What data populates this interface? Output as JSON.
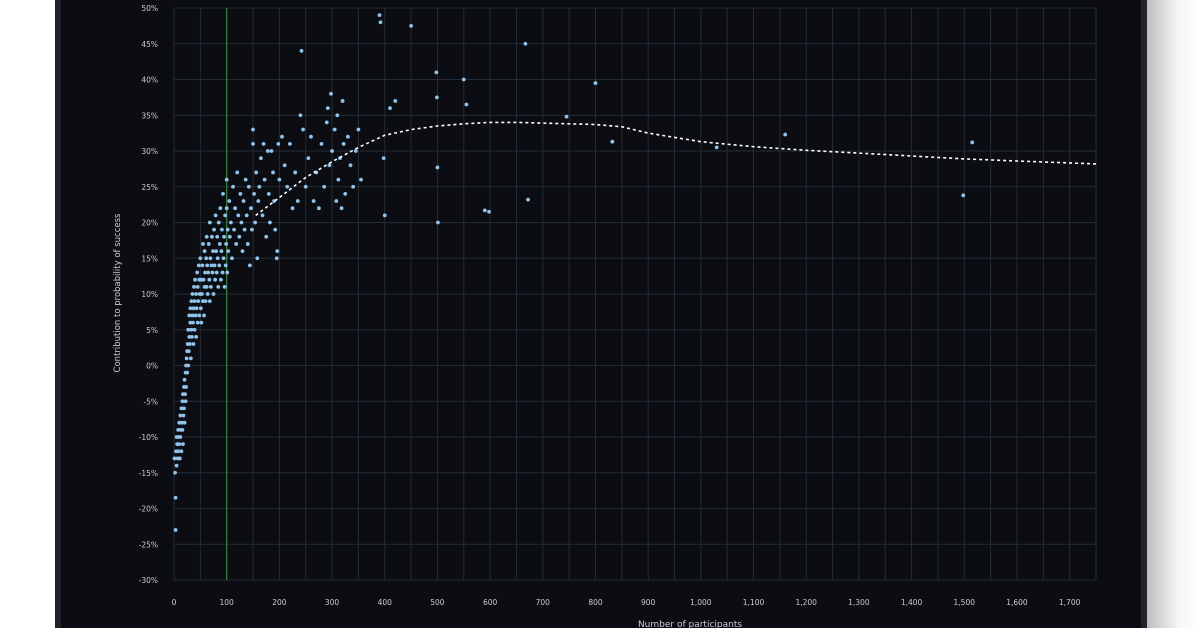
{
  "chart_data": {
    "type": "scatter",
    "xlabel": "Number of participants",
    "ylabel": "Contribution to probability of success",
    "xlim": [
      0,
      1750
    ],
    "ylim": [
      -30,
      50
    ],
    "x_ticks": [
      0,
      100,
      200,
      300,
      400,
      500,
      600,
      700,
      800,
      900,
      1000,
      1100,
      1200,
      1300,
      1400,
      1500,
      1600,
      1700
    ],
    "x_tick_labels": [
      "0",
      "100",
      "200",
      "300",
      "400",
      "500",
      "600",
      "700",
      "800",
      "900",
      "1,000",
      "1,100",
      "1,200",
      "1,300",
      "1,400",
      "1,500",
      "1,600",
      "1,700"
    ],
    "y_ticks": [
      -30,
      -25,
      -20,
      -15,
      -10,
      -5,
      0,
      5,
      10,
      15,
      20,
      25,
      30,
      35,
      40,
      45,
      50
    ],
    "y_tick_labels": [
      "-30%",
      "-25%",
      "-20%",
      "-15%",
      "-10%",
      "-5%",
      "0%",
      "5%",
      "10%",
      "15%",
      "20%",
      "25%",
      "30%",
      "35%",
      "40%",
      "45%",
      "50%"
    ],
    "grid": true,
    "reference_line_x": 100,
    "colors": {
      "points": "#8fc3ec",
      "trend": "#ffffff",
      "reference": "#2f7d3a",
      "grid": "#262b36",
      "text": "#c9ccd2",
      "background": "#0b0d12"
    },
    "trend": {
      "x": [
        155,
        200,
        250,
        300,
        350,
        400,
        450,
        500,
        550,
        600,
        650,
        700,
        750,
        800,
        850,
        900,
        1000,
        1100,
        1200,
        1300,
        1400,
        1500,
        1600,
        1750
      ],
      "y": [
        21,
        23.5,
        26.3,
        28.5,
        30.5,
        32.2,
        33,
        33.5,
        33.8,
        34,
        34,
        33.9,
        33.8,
        33.7,
        33.4,
        32.5,
        31.3,
        30.6,
        30.1,
        29.7,
        29.3,
        28.9,
        28.6,
        28.2
      ]
    },
    "points": [
      [
        1,
        -13
      ],
      [
        2,
        -15
      ],
      [
        3,
        -18.5
      ],
      [
        3,
        -23
      ],
      [
        4,
        -12
      ],
      [
        5,
        -10
      ],
      [
        5,
        -14
      ],
      [
        6,
        -11
      ],
      [
        7,
        -13
      ],
      [
        8,
        -9
      ],
      [
        8,
        -12
      ],
      [
        9,
        -10
      ],
      [
        10,
        -8
      ],
      [
        10,
        -11
      ],
      [
        11,
        -13
      ],
      [
        12,
        -7
      ],
      [
        12,
        -10
      ],
      [
        13,
        -9
      ],
      [
        14,
        -6
      ],
      [
        14,
        -12
      ],
      [
        15,
        -8
      ],
      [
        16,
        -5
      ],
      [
        16,
        -9
      ],
      [
        17,
        -4
      ],
      [
        17,
        -11
      ],
      [
        18,
        -7
      ],
      [
        19,
        -3
      ],
      [
        19,
        -6
      ],
      [
        20,
        -2
      ],
      [
        20,
        -8
      ],
      [
        21,
        -4
      ],
      [
        22,
        -1
      ],
      [
        22,
        -5
      ],
      [
        23,
        0
      ],
      [
        23,
        -3
      ],
      [
        24,
        1
      ],
      [
        25,
        -1
      ],
      [
        25,
        2
      ],
      [
        26,
        3
      ],
      [
        27,
        0
      ],
      [
        27,
        5
      ],
      [
        28,
        2
      ],
      [
        29,
        4
      ],
      [
        29,
        7
      ],
      [
        30,
        3
      ],
      [
        31,
        6
      ],
      [
        31,
        8
      ],
      [
        32,
        1
      ],
      [
        33,
        5
      ],
      [
        33,
        9
      ],
      [
        34,
        4
      ],
      [
        35,
        7
      ],
      [
        35,
        10
      ],
      [
        36,
        6
      ],
      [
        37,
        3
      ],
      [
        37,
        8
      ],
      [
        38,
        11
      ],
      [
        39,
        5
      ],
      [
        39,
        9
      ],
      [
        40,
        12
      ],
      [
        41,
        7
      ],
      [
        42,
        10
      ],
      [
        42,
        4
      ],
      [
        43,
        8
      ],
      [
        44,
        13
      ],
      [
        45,
        6
      ],
      [
        45,
        11
      ],
      [
        46,
        9
      ],
      [
        47,
        14
      ],
      [
        48,
        7
      ],
      [
        48,
        12
      ],
      [
        49,
        10
      ],
      [
        50,
        15
      ],
      [
        51,
        8
      ],
      [
        52,
        12
      ],
      [
        52,
        6
      ],
      [
        53,
        10
      ],
      [
        54,
        14
      ],
      [
        55,
        9
      ],
      [
        55,
        17
      ],
      [
        56,
        12
      ],
      [
        57,
        7
      ],
      [
        58,
        11
      ],
      [
        58,
        16
      ],
      [
        59,
        13
      ],
      [
        60,
        9
      ],
      [
        61,
        15
      ],
      [
        62,
        11
      ],
      [
        62,
        18
      ],
      [
        63,
        14
      ],
      [
        64,
        10
      ],
      [
        65,
        13
      ],
      [
        66,
        17
      ],
      [
        67,
        12
      ],
      [
        68,
        20
      ],
      [
        68,
        9
      ],
      [
        69,
        15
      ],
      [
        70,
        11
      ],
      [
        71,
        14
      ],
      [
        72,
        18
      ],
      [
        73,
        13
      ],
      [
        74,
        16
      ],
      [
        75,
        10
      ],
      [
        76,
        19
      ],
      [
        77,
        14
      ],
      [
        78,
        12
      ],
      [
        79,
        21
      ],
      [
        80,
        16
      ],
      [
        81,
        13
      ],
      [
        82,
        18
      ],
      [
        83,
        15
      ],
      [
        84,
        11
      ],
      [
        85,
        20
      ],
      [
        86,
        14
      ],
      [
        87,
        17
      ],
      [
        88,
        22
      ],
      [
        89,
        12
      ],
      [
        90,
        16
      ],
      [
        91,
        19
      ],
      [
        92,
        13
      ],
      [
        93,
        24
      ],
      [
        94,
        15
      ],
      [
        95,
        18
      ],
      [
        96,
        11
      ],
      [
        97,
        21
      ],
      [
        98,
        14
      ],
      [
        99,
        17
      ],
      [
        100,
        22
      ],
      [
        100,
        26
      ],
      [
        101,
        13
      ],
      [
        102,
        19
      ],
      [
        103,
        16
      ],
      [
        105,
        23
      ],
      [
        106,
        18
      ],
      [
        108,
        20
      ],
      [
        110,
        15
      ],
      [
        112,
        25
      ],
      [
        114,
        19
      ],
      [
        116,
        22
      ],
      [
        118,
        17
      ],
      [
        120,
        27
      ],
      [
        122,
        21
      ],
      [
        124,
        18
      ],
      [
        126,
        24
      ],
      [
        128,
        20
      ],
      [
        130,
        16
      ],
      [
        132,
        23
      ],
      [
        134,
        19
      ],
      [
        136,
        26
      ],
      [
        138,
        21
      ],
      [
        140,
        17
      ],
      [
        142,
        25
      ],
      [
        144,
        14
      ],
      [
        146,
        22
      ],
      [
        148,
        19
      ],
      [
        150,
        31
      ],
      [
        150,
        33
      ],
      [
        152,
        24
      ],
      [
        154,
        20
      ],
      [
        156,
        27
      ],
      [
        158,
        15
      ],
      [
        160,
        23
      ],
      [
        162,
        25
      ],
      [
        165,
        29
      ],
      [
        168,
        21
      ],
      [
        170,
        31
      ],
      [
        172,
        26
      ],
      [
        175,
        18
      ],
      [
        178,
        30
      ],
      [
        180,
        24
      ],
      [
        182,
        20
      ],
      [
        185,
        30
      ],
      [
        188,
        27
      ],
      [
        190,
        23
      ],
      [
        192,
        19
      ],
      [
        195,
        15
      ],
      [
        196,
        16
      ],
      [
        198,
        31
      ],
      [
        200,
        26
      ],
      [
        205,
        32
      ],
      [
        210,
        28
      ],
      [
        215,
        25
      ],
      [
        220,
        31
      ],
      [
        225,
        22
      ],
      [
        230,
        27
      ],
      [
        235,
        23
      ],
      [
        240,
        35
      ],
      [
        242,
        44
      ],
      [
        245,
        33
      ],
      [
        250,
        25
      ],
      [
        255,
        29
      ],
      [
        260,
        32
      ],
      [
        265,
        23
      ],
      [
        270,
        27
      ],
      [
        275,
        22
      ],
      [
        280,
        31
      ],
      [
        285,
        25
      ],
      [
        290,
        34
      ],
      [
        292,
        36
      ],
      [
        295,
        28
      ],
      [
        298,
        38
      ],
      [
        300,
        30
      ],
      [
        305,
        33
      ],
      [
        308,
        23
      ],
      [
        310,
        35
      ],
      [
        312,
        26
      ],
      [
        315,
        29
      ],
      [
        318,
        22
      ],
      [
        320,
        37
      ],
      [
        322,
        31
      ],
      [
        325,
        24
      ],
      [
        330,
        32
      ],
      [
        335,
        28
      ],
      [
        340,
        25
      ],
      [
        345,
        30
      ],
      [
        350,
        33
      ],
      [
        355,
        26
      ],
      [
        390,
        49
      ],
      [
        392,
        48
      ],
      [
        398,
        29
      ],
      [
        400,
        21
      ],
      [
        410,
        36
      ],
      [
        420,
        37
      ],
      [
        450,
        47.5
      ],
      [
        498,
        41
      ],
      [
        499,
        37.5
      ],
      [
        500,
        27.7
      ],
      [
        501,
        20
      ],
      [
        550,
        40
      ],
      [
        555,
        36.5
      ],
      [
        590,
        21.7
      ],
      [
        598,
        21.5
      ],
      [
        667,
        45
      ],
      [
        672,
        23.2
      ],
      [
        745,
        34.8
      ],
      [
        800,
        39.5
      ],
      [
        832,
        31.3
      ],
      [
        1030,
        30.5
      ],
      [
        1160,
        32.3
      ],
      [
        1498,
        23.8
      ],
      [
        1515,
        31.2
      ]
    ]
  }
}
